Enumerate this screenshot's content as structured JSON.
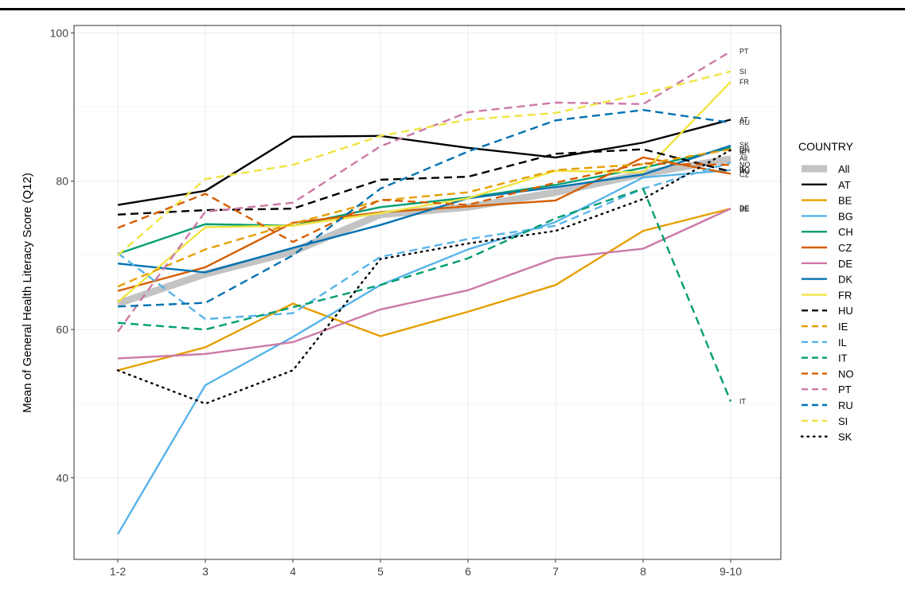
{
  "chart_data": {
    "type": "line",
    "title": "",
    "xlabel": "",
    "ylabel": "Mean of General Health Literacy Score (Q12)",
    "categories": [
      "1-2",
      "3",
      "4",
      "5",
      "6",
      "7",
      "8",
      "9-10"
    ],
    "ylim": [
      29,
      101
    ],
    "yticks": [
      40,
      60,
      80,
      100
    ],
    "grid": true,
    "legend": {
      "title": "COUNTRY",
      "placement": "right"
    },
    "series": [
      {
        "name": "All",
        "color": "#bdbdbd",
        "dash": "solid",
        "thick": true,
        "values": [
          63.5,
          67.5,
          70.5,
          75.5,
          76.5,
          78.5,
          81,
          83
        ]
      },
      {
        "name": "AT",
        "color": "#000000",
        "dash": "solid",
        "values": [
          76.8,
          78.7,
          86,
          86.1,
          84.5,
          83.2,
          85.2,
          88.3
        ]
      },
      {
        "name": "BE",
        "color": "#e69f00",
        "dash": "solid",
        "values": [
          54.5,
          57.6,
          63.5,
          59.1,
          62.4,
          66,
          73.3,
          76.3
        ]
      },
      {
        "name": "BG",
        "color": "#56b4e9",
        "dash": "solid",
        "values": [
          32.4,
          52.5,
          59,
          66,
          70.8,
          74.5,
          80.5,
          81.5
        ]
      },
      {
        "name": "CH",
        "color": "#009e73",
        "dash": "solid",
        "values": [
          70.2,
          74.2,
          74,
          76.5,
          77.8,
          79.5,
          81.8,
          84.5
        ]
      },
      {
        "name": "CZ",
        "color": "#d55e00",
        "dash": "solid",
        "values": [
          65.2,
          68.4,
          74.4,
          75.8,
          76.6,
          77.4,
          83.2,
          81
        ]
      },
      {
        "name": "DE",
        "color": "#cc79a7",
        "dash": "solid",
        "values": [
          56.1,
          56.7,
          58.3,
          62.7,
          65.3,
          69.6,
          70.9,
          76.3
        ]
      },
      {
        "name": "DK",
        "color": "#0072b2",
        "dash": "solid",
        "values": [
          68.9,
          67.7,
          71,
          74.1,
          77.7,
          79.2,
          80.9,
          84.8
        ]
      },
      {
        "name": "FR",
        "color": "#f0e442",
        "dash": "solid",
        "values": [
          63.7,
          73.8,
          74,
          75.7,
          77.7,
          81.4,
          81.2,
          93.4
        ]
      },
      {
        "name": "HU",
        "color": "#000000",
        "dash": "dashed",
        "values": [
          75.5,
          76.1,
          76.3,
          80.2,
          80.6,
          83.7,
          84.3,
          81.3
        ]
      },
      {
        "name": "IE",
        "color": "#e69f00",
        "dash": "dashed",
        "values": [
          65.8,
          70.8,
          74.3,
          77.4,
          78.5,
          81.5,
          82.3,
          84.3
        ]
      },
      {
        "name": "IL",
        "color": "#56b4e9",
        "dash": "dashed",
        "values": [
          70.3,
          61.4,
          62.2,
          69.8,
          72.2,
          74,
          79,
          82.5
        ]
      },
      {
        "name": "IT",
        "color": "#009e73",
        "dash": "dashed",
        "values": [
          60.9,
          60,
          63,
          66,
          69.6,
          75,
          79,
          50.3
        ]
      },
      {
        "name": "NO",
        "color": "#d55e00",
        "dash": "dashed",
        "values": [
          73.7,
          78.3,
          71.8,
          77.5,
          76.8,
          79.8,
          82.4,
          82.2
        ]
      },
      {
        "name": "PT",
        "color": "#cc79a7",
        "dash": "dashed",
        "values": [
          59.7,
          75.9,
          77.1,
          84.7,
          89.3,
          90.6,
          90.4,
          97.5
        ]
      },
      {
        "name": "RU",
        "color": "#0072b2",
        "dash": "dashed",
        "values": [
          63.1,
          63.6,
          70,
          79,
          84,
          88.2,
          89.6,
          87.9
        ]
      },
      {
        "name": "SI",
        "color": "#f0e442",
        "dash": "dashed",
        "values": [
          70,
          80.3,
          82.2,
          86.1,
          88.3,
          89.2,
          91.8,
          94.8
        ]
      },
      {
        "name": "SK",
        "color": "#000000",
        "dash": "dotted",
        "values": [
          54.5,
          50,
          54.5,
          69.5,
          71.6,
          73.3,
          77.6,
          84.2
        ]
      }
    ],
    "end_labels": [
      {
        "text": "PT",
        "y": 97.5
      },
      {
        "text": "SI",
        "y": 94.8
      },
      {
        "text": "FR",
        "y": 93.4
      },
      {
        "text": "AT",
        "y": 88.3
      },
      {
        "text": "RU",
        "y": 87.9
      },
      {
        "text": "SK",
        "y": 84.9
      },
      {
        "text": "DK",
        "y": 84.3
      },
      {
        "text": "CH",
        "y": 84.1
      },
      {
        "text": "IE",
        "y": 83.9
      },
      {
        "text": "All",
        "y": 83.1
      },
      {
        "text": "NO",
        "y": 82.2
      },
      {
        "text": "IL",
        "y": 81.7
      },
      {
        "text": "BG",
        "y": 81.5
      },
      {
        "text": "HU",
        "y": 81.3
      },
      {
        "text": "CZ",
        "y": 80.9
      },
      {
        "text": "DE",
        "y": 76.4
      },
      {
        "text": "BE",
        "y": 76.2
      },
      {
        "text": "IT",
        "y": 50.3
      }
    ]
  }
}
